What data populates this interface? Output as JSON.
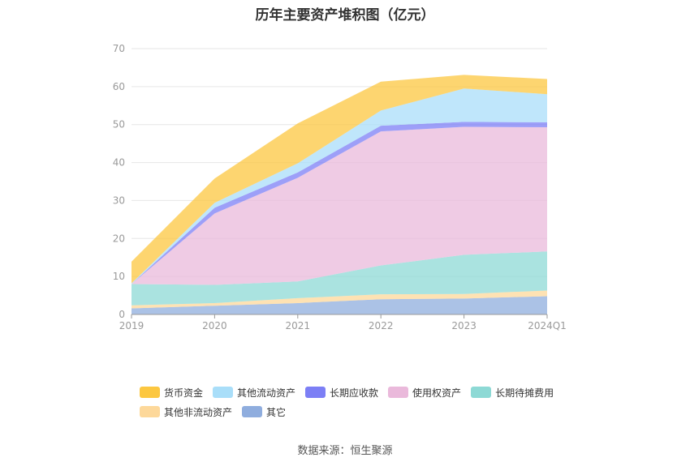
{
  "title": "历年主要资产堆积图（亿元）",
  "source": "数据来源：恒生聚源",
  "chart_data": {
    "type": "area",
    "stacked": true,
    "categories": [
      "2019",
      "2020",
      "2021",
      "2022",
      "2023",
      "2024Q1"
    ],
    "ylim": [
      0,
      70
    ],
    "yticks": [
      0,
      10,
      20,
      30,
      40,
      50,
      60,
      70
    ],
    "grid": true,
    "legend_position": "bottom",
    "series": [
      {
        "name": "其它",
        "color": "#8fadde",
        "values": [
          1.6,
          2.3,
          3.0,
          4.0,
          4.2,
          4.8
        ]
      },
      {
        "name": "其他非流动资产",
        "color": "#fdd89a",
        "values": [
          0.8,
          0.7,
          1.3,
          1.3,
          1.2,
          1.5
        ]
      },
      {
        "name": "长期待摊费用",
        "color": "#8dd9d5",
        "values": [
          5.6,
          4.8,
          4.4,
          7.6,
          10.3,
          10.3
        ]
      },
      {
        "name": "使用权资产",
        "color": "#eab9db",
        "values": [
          0.0,
          18.8,
          27.3,
          35.3,
          33.7,
          32.7
        ]
      },
      {
        "name": "长期应收款",
        "color": "#7c7ff5",
        "values": [
          0.0,
          1.5,
          1.4,
          1.5,
          1.3,
          1.3
        ]
      },
      {
        "name": "其他流动资产",
        "color": "#a9def9",
        "values": [
          0.2,
          1.3,
          2.4,
          4.0,
          8.8,
          7.4
        ]
      },
      {
        "name": "货币资金",
        "color": "#fcc740",
        "values": [
          5.7,
          6.4,
          10.5,
          7.6,
          3.6,
          4.0
        ]
      }
    ]
  },
  "legend": {
    "row1": [
      "货币资金",
      "其他流动资产",
      "长期应收款",
      "使用权资产",
      "长期待摊费用"
    ],
    "row2": [
      "其他非流动资产",
      "其它"
    ],
    "colors": {
      "货币资金": "#fcc740",
      "其他流动资产": "#a9def9",
      "长期应收款": "#7c7ff5",
      "使用权资产": "#eab9db",
      "长期待摊费用": "#8dd9d5",
      "其他非流动资产": "#fdd89a",
      "其它": "#8fadde"
    }
  }
}
